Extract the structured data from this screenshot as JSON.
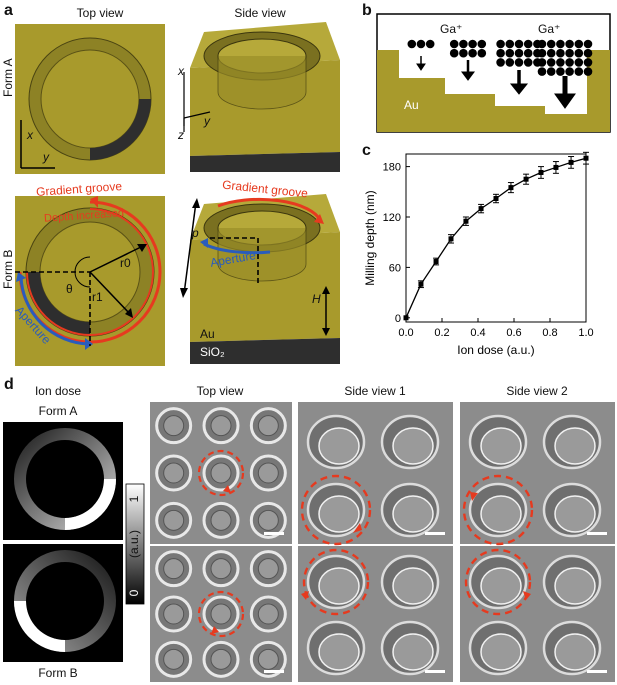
{
  "panel_a": {
    "label": "a",
    "col_top": "Top view",
    "col_side": "Side view",
    "row_a": "Form A",
    "row_b": "Form B",
    "axis_x": "x",
    "axis_y": "y",
    "axis_z": "z",
    "gradient_groove": "Gradient groove",
    "depth_increased": "Depth increased",
    "aperture": "Aperture",
    "theta": "θ",
    "r0": "r0",
    "r1": "r1",
    "p": "p",
    "H": "H",
    "au": "Au",
    "sio2": "SiO₂"
  },
  "panel_b": {
    "label": "b",
    "ga_left": "Ga⁺",
    "ga_right": "Ga⁺",
    "au": "Au"
  },
  "panel_c": {
    "label": "c"
  },
  "chart_data": {
    "type": "line",
    "xlabel": "Ion dose (a.u.)",
    "ylabel": "Milling depth (nm)",
    "xlim": [
      0,
      1.0
    ],
    "ylim": [
      -5,
      195
    ],
    "xticks": [
      "0.0",
      "0.2",
      "0.4",
      "0.6",
      "0.8",
      "1.0"
    ],
    "yticks": [
      "0",
      "60",
      "120",
      "180"
    ],
    "x": [
      0.0,
      0.083,
      0.167,
      0.25,
      0.333,
      0.417,
      0.5,
      0.583,
      0.667,
      0.75,
      0.833,
      0.917,
      1.0
    ],
    "y": [
      0,
      40,
      67,
      94,
      115,
      130,
      142,
      155,
      165,
      173,
      179,
      185,
      190
    ],
    "err": [
      2,
      4,
      4,
      5,
      5,
      5,
      5,
      6,
      6,
      7,
      7,
      7,
      7
    ]
  },
  "panel_d": {
    "label": "d",
    "ion_dose": "Ion dose",
    "form_a": "Form A",
    "form_b": "Form B",
    "colorbar_top": "1",
    "colorbar_bottom": "0",
    "colorbar_unit": "(a.u.)",
    "col_top": "Top view",
    "col_side1": "Side view 1",
    "col_side2": "Side view 2"
  },
  "colors": {
    "gold": "#a89a2c",
    "gold_dark": "#7d7420",
    "red": "#e63a1f",
    "blue": "#2a5cbc",
    "sem": "#8a8a8a"
  }
}
